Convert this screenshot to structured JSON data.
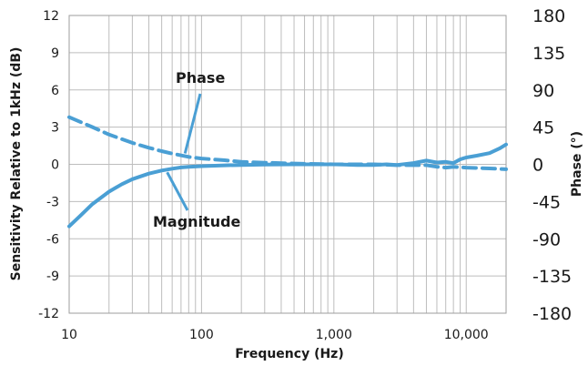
{
  "chart_data": {
    "type": "line",
    "xlabel": "Frequency (Hz)",
    "ylabel": "Sensitivity Relative to 1kHz (dB)",
    "y2label": "Phase (°)",
    "x_scale": "log",
    "xlim": [
      10,
      20000
    ],
    "ylim": [
      -12,
      12
    ],
    "y2lim": [
      -180,
      180
    ],
    "grid": true,
    "x_ticks": [
      10,
      100,
      1000,
      10000
    ],
    "x_tick_labels": [
      "10",
      "100",
      "1,000",
      "10,000"
    ],
    "y_ticks": [
      12,
      9,
      6,
      3,
      0,
      -3,
      -6,
      -9,
      -12
    ],
    "y_tick_labels": [
      "12",
      "9",
      "6",
      "3",
      "0",
      "-3",
      "-6",
      "-9",
      "-12"
    ],
    "y2_ticks": [
      180,
      135,
      90,
      45,
      0,
      -45,
      -90,
      -135,
      -180
    ],
    "y2_tick_labels": [
      "180",
      "135",
      "90",
      "45",
      "0",
      "-45",
      "-90",
      "-135",
      "-180"
    ],
    "series": [
      {
        "name": "Magnitude",
        "axis": "left",
        "style": "solid",
        "color": "#4a9fd4",
        "x": [
          10,
          12,
          15,
          20,
          25,
          30,
          40,
          50,
          60,
          70,
          80,
          100,
          150,
          200,
          300,
          500,
          700,
          1000,
          1500,
          2000,
          2500,
          3000,
          4000,
          5000,
          6000,
          7000,
          8000,
          9000,
          10000,
          12000,
          15000,
          18000,
          20000
        ],
        "values": [
          -5.0,
          -4.2,
          -3.2,
          -2.2,
          -1.6,
          -1.2,
          -0.75,
          -0.5,
          -0.35,
          -0.25,
          -0.2,
          -0.15,
          -0.08,
          -0.05,
          -0.02,
          0.0,
          0.0,
          0.0,
          -0.05,
          -0.05,
          0.0,
          -0.05,
          0.1,
          0.3,
          0.15,
          0.2,
          0.1,
          0.4,
          0.55,
          0.7,
          0.9,
          1.3,
          1.6
        ]
      },
      {
        "name": "Phase",
        "axis": "right",
        "style": "dashed",
        "color": "#4a9fd4",
        "x": [
          10,
          15,
          20,
          30,
          40,
          50,
          60,
          80,
          100,
          150,
          200,
          300,
          500,
          1000,
          2000,
          3000,
          4000,
          5000,
          6000,
          7000,
          8000,
          10000,
          15000,
          20000
        ],
        "values": [
          57,
          45,
          36,
          26,
          20,
          16,
          13,
          9,
          7,
          5,
          3,
          2,
          1,
          0,
          0,
          -1,
          -1,
          -1,
          -3,
          -4,
          -3,
          -4,
          -5,
          -6
        ]
      }
    ],
    "annotations": [
      {
        "text": "Phase",
        "target_series": "Phase"
      },
      {
        "text": "Magnitude",
        "target_series": "Magnitude"
      }
    ]
  }
}
